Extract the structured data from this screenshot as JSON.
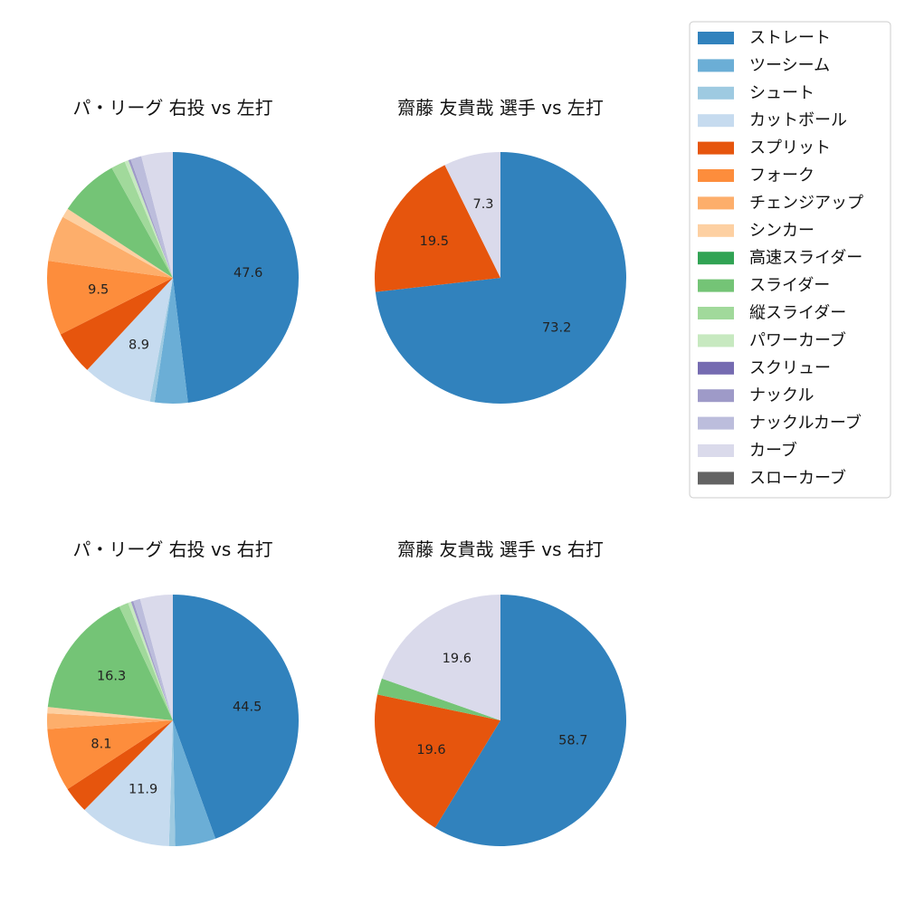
{
  "legend": [
    {
      "name": "ストレート",
      "color": "#3182bd"
    },
    {
      "name": "ツーシーム",
      "color": "#6baed6"
    },
    {
      "name": "シュート",
      "color": "#9ecae1"
    },
    {
      "name": "カットボール",
      "color": "#c6dbef"
    },
    {
      "name": "スプリット",
      "color": "#e6550d"
    },
    {
      "name": "フォーク",
      "color": "#fd8d3c"
    },
    {
      "name": "チェンジアップ",
      "color": "#fdae6b"
    },
    {
      "name": "シンカー",
      "color": "#fdd0a2"
    },
    {
      "name": "高速スライダー",
      "color": "#31a354"
    },
    {
      "name": "スライダー",
      "color": "#74c476"
    },
    {
      "name": "縦スライダー",
      "color": "#a1d99b"
    },
    {
      "name": "パワーカーブ",
      "color": "#c7e9c0"
    },
    {
      "name": "スクリュー",
      "color": "#756bb1"
    },
    {
      "name": "ナックル",
      "color": "#9e9ac8"
    },
    {
      "name": "ナックルカーブ",
      "color": "#bcbddc"
    },
    {
      "name": "カーブ",
      "color": "#dadaeb"
    },
    {
      "name": "スローカーブ",
      "color": "#636363"
    }
  ],
  "chart_data": [
    {
      "type": "pie",
      "title": "パ・リーグ 右投 vs 左打",
      "slices": [
        {
          "name": "ストレート",
          "value": 47.6,
          "label": "47.6"
        },
        {
          "name": "ツーシーム",
          "value": 4.2,
          "label": ""
        },
        {
          "name": "シュート",
          "value": 0.6,
          "label": ""
        },
        {
          "name": "カットボール",
          "value": 8.9,
          "label": "8.9"
        },
        {
          "name": "スプリット",
          "value": 5.6,
          "label": ""
        },
        {
          "name": "フォーク",
          "value": 9.5,
          "label": "9.5"
        },
        {
          "name": "チェンジアップ",
          "value": 5.8,
          "label": ""
        },
        {
          "name": "シンカー",
          "value": 1.2,
          "label": ""
        },
        {
          "name": "スライダー",
          "value": 7.6,
          "label": ""
        },
        {
          "name": "縦スライダー",
          "value": 1.8,
          "label": ""
        },
        {
          "name": "パワーカーブ",
          "value": 0.5,
          "label": ""
        },
        {
          "name": "ナックル",
          "value": 0.3,
          "label": ""
        },
        {
          "name": "ナックルカーブ",
          "value": 1.4,
          "label": ""
        },
        {
          "name": "カーブ",
          "value": 4.0,
          "label": ""
        }
      ]
    },
    {
      "type": "pie",
      "title": "齋藤 友貴哉 選手 vs 左打",
      "slices": [
        {
          "name": "ストレート",
          "value": 73.2,
          "label": "73.2"
        },
        {
          "name": "スプリット",
          "value": 19.5,
          "label": "19.5"
        },
        {
          "name": "カーブ",
          "value": 7.3,
          "label": "7.3"
        }
      ]
    },
    {
      "type": "pie",
      "title": "パ・リーグ 右投 vs 右打",
      "slices": [
        {
          "name": "ストレート",
          "value": 44.5,
          "label": "44.5"
        },
        {
          "name": "ツーシーム",
          "value": 5.2,
          "label": ""
        },
        {
          "name": "シュート",
          "value": 0.8,
          "label": ""
        },
        {
          "name": "カットボール",
          "value": 11.9,
          "label": "11.9"
        },
        {
          "name": "スプリット",
          "value": 3.4,
          "label": ""
        },
        {
          "name": "フォーク",
          "value": 8.1,
          "label": "8.1"
        },
        {
          "name": "チェンジアップ",
          "value": 2.0,
          "label": ""
        },
        {
          "name": "シンカー",
          "value": 0.8,
          "label": ""
        },
        {
          "name": "スライダー",
          "value": 16.3,
          "label": "16.3"
        },
        {
          "name": "縦スライダー",
          "value": 1.2,
          "label": ""
        },
        {
          "name": "パワーカーブ",
          "value": 0.4,
          "label": ""
        },
        {
          "name": "ナックル",
          "value": 0.3,
          "label": ""
        },
        {
          "name": "ナックルカーブ",
          "value": 0.9,
          "label": ""
        },
        {
          "name": "カーブ",
          "value": 4.2,
          "label": ""
        }
      ]
    },
    {
      "type": "pie",
      "title": "齋藤 友貴哉 選手 vs 右打",
      "slices": [
        {
          "name": "ストレート",
          "value": 58.7,
          "label": "58.7"
        },
        {
          "name": "スプリット",
          "value": 19.6,
          "label": "19.6"
        },
        {
          "name": "スライダー",
          "value": 2.1,
          "label": ""
        },
        {
          "name": "カーブ",
          "value": 19.6,
          "label": "19.6"
        }
      ]
    }
  ]
}
